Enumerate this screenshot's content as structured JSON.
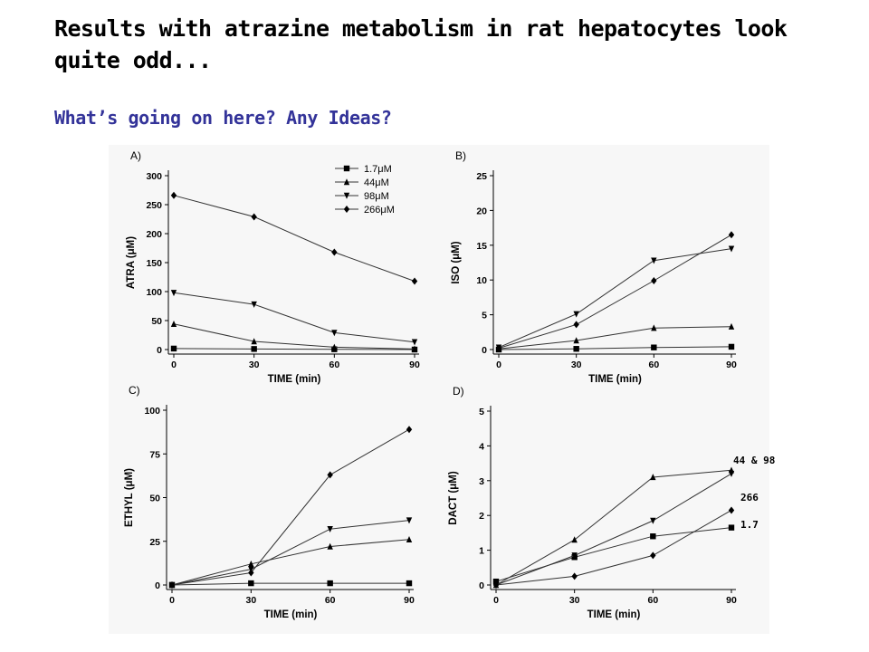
{
  "slide": {
    "title": "Results with atrazine metabolism in rat hepatocytes look quite odd...",
    "subtitle": "What’s going on here? Any Ideas?"
  },
  "annotations": {
    "a1": "44 & 98",
    "a2": "266",
    "a3": "1.7"
  },
  "chart_data": [
    {
      "type": "line",
      "panel": "A)",
      "xlabel": "TIME (min)",
      "ylabel": "ATRA (μM)",
      "x": [
        0,
        30,
        60,
        90
      ],
      "xlim": [
        0,
        90
      ],
      "ylim": [
        0,
        300
      ],
      "xticks": [
        "0",
        "30",
        "60",
        "90"
      ],
      "yticks": [
        "0",
        "50",
        "100",
        "150",
        "200",
        "250",
        "300"
      ],
      "legend": "top-right",
      "series": [
        {
          "name": "1.7μM",
          "marker": "square",
          "values": [
            1.7,
            1,
            0.5,
            0
          ]
        },
        {
          "name": "44μM",
          "marker": "triangle-up",
          "values": [
            44,
            14,
            4,
            1
          ]
        },
        {
          "name": "98μM",
          "marker": "triangle-down",
          "values": [
            98,
            78,
            29,
            13
          ]
        },
        {
          "name": "266μM",
          "marker": "diamond",
          "values": [
            266,
            229,
            168,
            118
          ]
        }
      ]
    },
    {
      "type": "line",
      "panel": "B)",
      "xlabel": "TIME (min)",
      "ylabel": "ISO (μM)",
      "x": [
        0,
        30,
        60,
        90
      ],
      "xlim": [
        0,
        90
      ],
      "ylim": [
        0,
        25
      ],
      "xticks": [
        "0",
        "30",
        "60",
        "90"
      ],
      "yticks": [
        "0",
        "5",
        "10",
        "15",
        "20",
        "25"
      ],
      "series": [
        {
          "name": "1.7μM",
          "marker": "square",
          "values": [
            0,
            0.1,
            0.3,
            0.4
          ]
        },
        {
          "name": "44μM",
          "marker": "triangle-up",
          "values": [
            0.1,
            1.3,
            3.1,
            3.3
          ]
        },
        {
          "name": "98μM",
          "marker": "triangle-down",
          "values": [
            0.3,
            5.1,
            12.8,
            14.5
          ]
        },
        {
          "name": "266μM",
          "marker": "diamond",
          "values": [
            0.2,
            3.6,
            9.9,
            16.5
          ]
        }
      ]
    },
    {
      "type": "line",
      "panel": "C)",
      "xlabel": "TIME (min)",
      "ylabel": "ETHYL (μM)",
      "x": [
        0,
        30,
        60,
        90
      ],
      "xlim": [
        0,
        90
      ],
      "ylim": [
        0,
        100
      ],
      "xticks": [
        "0",
        "30",
        "60",
        "90"
      ],
      "yticks": [
        "0",
        "25",
        "50",
        "75",
        "100"
      ],
      "series": [
        {
          "name": "1.7μM",
          "marker": "square",
          "values": [
            0,
            1,
            1,
            1
          ]
        },
        {
          "name": "44μM",
          "marker": "triangle-up",
          "values": [
            0,
            12,
            22,
            26
          ]
        },
        {
          "name": "98μM",
          "marker": "triangle-down",
          "values": [
            0,
            9,
            32,
            37
          ]
        },
        {
          "name": "266μM",
          "marker": "diamond",
          "values": [
            0,
            7,
            63,
            89
          ]
        }
      ]
    },
    {
      "type": "line",
      "panel": "D)",
      "xlabel": "TIME (min)",
      "ylabel": "DACT (μM)",
      "x": [
        0,
        30,
        60,
        90
      ],
      "xlim": [
        0,
        90
      ],
      "ylim": [
        0,
        5
      ],
      "xticks": [
        "0",
        "30",
        "60",
        "90"
      ],
      "yticks": [
        "0",
        "1",
        "2",
        "3",
        "4",
        "5"
      ],
      "series": [
        {
          "name": "1.7μM",
          "marker": "square",
          "values": [
            0.1,
            0.8,
            1.4,
            1.65
          ]
        },
        {
          "name": "44μM",
          "marker": "triangle-up",
          "values": [
            0,
            1.3,
            3.1,
            3.3
          ]
        },
        {
          "name": "98μM",
          "marker": "triangle-down",
          "values": [
            0,
            0.85,
            1.85,
            3.2
          ]
        },
        {
          "name": "266μM",
          "marker": "diamond",
          "values": [
            0,
            0.25,
            0.85,
            2.15
          ]
        }
      ]
    }
  ]
}
